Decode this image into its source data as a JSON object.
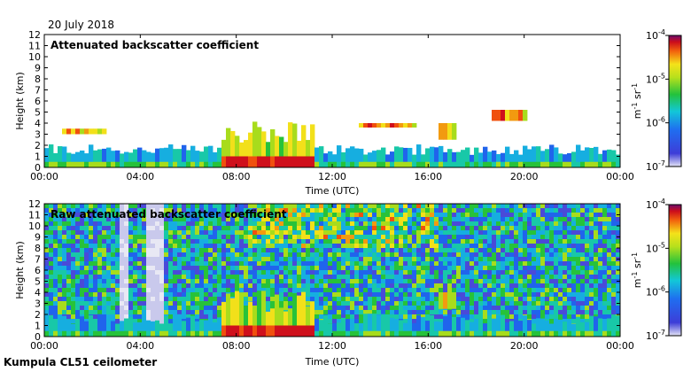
{
  "figure": {
    "date": "20 July 2018",
    "footer": "Kumpula CL51 ceilometer"
  },
  "chart_data": [
    {
      "type": "heatmap",
      "title": "Attenuated backscatter coefficient",
      "xlabel": "Time (UTC)",
      "ylabel": "Height (km)",
      "xticks": [
        "00:00",
        "04:00",
        "08:00",
        "12:00",
        "16:00",
        "20:00",
        "00:00"
      ],
      "yticks": [
        "0",
        "1",
        "2",
        "3",
        "4",
        "5",
        "6",
        "7",
        "8",
        "9",
        "10",
        "11",
        "12"
      ],
      "xlim_hours": [
        0,
        24
      ],
      "ylim_km": [
        0,
        12
      ],
      "colorbar": {
        "scale": "log",
        "range": [
          1e-07,
          0.0001
        ],
        "ticks": [
          {
            "base": "10",
            "exp": "-4"
          },
          {
            "base": "10",
            "exp": "-5"
          },
          {
            "base": "10",
            "exp": "-6"
          },
          {
            "base": "10",
            "exp": "-7"
          }
        ],
        "unit": {
          "m": "m",
          "m_exp": "-1",
          "sr": "sr",
          "sr_exp": "-1"
        }
      },
      "features": [
        {
          "kind": "boundary_layer",
          "t_start": 0,
          "t_end": 24,
          "top_km": 1.6
        },
        {
          "kind": "cloud_layer",
          "t_start": 0.8,
          "t_end": 2.5,
          "base_km": 3.0,
          "top_km": 3.5
        },
        {
          "kind": "convective_layer",
          "t_start": 7.3,
          "t_end": 11.2,
          "top_km": 3.2
        },
        {
          "kind": "cloud_layer",
          "t_start": 13.2,
          "t_end": 15.5,
          "base_km": 3.6,
          "top_km": 4.0
        },
        {
          "kind": "cloud_layer",
          "t_start": 16.5,
          "t_end": 17.1,
          "base_km": 2.5,
          "top_km": 4.0
        },
        {
          "kind": "cloud_layer",
          "t_start": 18.6,
          "t_end": 20.2,
          "base_km": 4.2,
          "top_km": 5.2
        }
      ]
    },
    {
      "type": "heatmap",
      "title": "Raw attenuated backscatter coefficient",
      "xlabel": "Time (UTC)",
      "ylabel": "Height (km)",
      "xticks": [
        "00:00",
        "04:00",
        "08:00",
        "12:00",
        "16:00",
        "20:00",
        "00:00"
      ],
      "yticks": [
        "0",
        "1",
        "2",
        "3",
        "4",
        "5",
        "6",
        "7",
        "8",
        "9",
        "10",
        "11",
        "12"
      ],
      "xlim_hours": [
        0,
        24
      ],
      "ylim_km": [
        0,
        12
      ],
      "colorbar": {
        "scale": "log",
        "range": [
          1e-07,
          0.0001
        ],
        "ticks": [
          {
            "base": "10",
            "exp": "-4"
          },
          {
            "base": "10",
            "exp": "-5"
          },
          {
            "base": "10",
            "exp": "-6"
          },
          {
            "base": "10",
            "exp": "-7"
          }
        ],
        "unit": {
          "m": "m",
          "m_exp": "-1",
          "sr": "sr",
          "sr_exp": "-1"
        }
      },
      "features": [
        {
          "kind": "noise_background",
          "t_start": 0,
          "t_end": 24
        },
        {
          "kind": "boundary_layer",
          "t_start": 0,
          "t_end": 24,
          "top_km": 1.6
        },
        {
          "kind": "convective_layer",
          "t_start": 7.3,
          "t_end": 11.2,
          "top_km": 3.2
        },
        {
          "kind": "cloud_layer",
          "t_start": 16.5,
          "t_end": 17.1,
          "base_km": 2.5,
          "top_km": 4.0
        }
      ]
    }
  ]
}
